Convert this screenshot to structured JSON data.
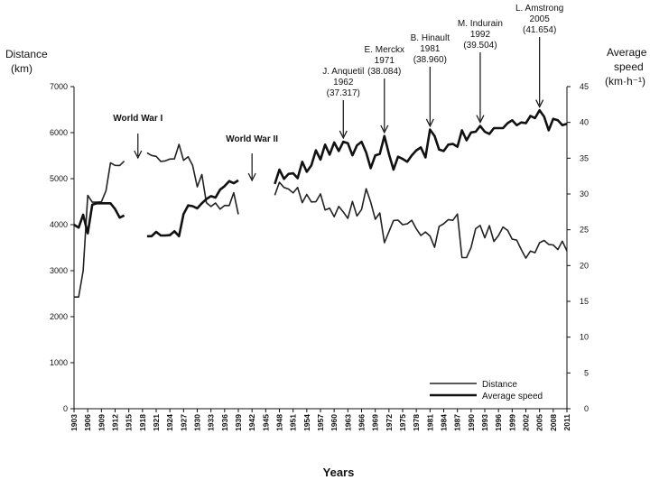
{
  "chart_data": {
    "type": "line",
    "left_axis": {
      "title_line1": "Distance",
      "title_line2": "(km)",
      "ylim": [
        0,
        7000
      ],
      "ticks": [
        "0",
        "1000",
        "2000",
        "3000",
        "4000",
        "5000",
        "6000",
        "7000"
      ]
    },
    "right_axis": {
      "title_line1": "Average",
      "title_line2": "speed",
      "title_line3": "(km·h⁻¹)",
      "ylim": [
        0,
        45
      ],
      "ticks": [
        "0",
        "5",
        "10",
        "15",
        "20",
        "25",
        "30",
        "35",
        "40",
        "45"
      ]
    },
    "x_axis": {
      "title": "Years",
      "xlim": [
        1903,
        2011
      ],
      "ticks": [
        "1903",
        "1906",
        "1909",
        "1912",
        "1915",
        "1918",
        "1921",
        "1924",
        "1927",
        "1930",
        "1933",
        "1936",
        "1939",
        "1942",
        "1945",
        "1948",
        "1951",
        "1954",
        "1957",
        "1960",
        "1963",
        "1966",
        "1969",
        "1972",
        "1975",
        "1978",
        "1981",
        "1984",
        "1987",
        "1990",
        "1993",
        "1996",
        "1999",
        "2002",
        "2005",
        "2008",
        "2011"
      ]
    },
    "wars": [
      {
        "label": "World War I",
        "year": 1917
      },
      {
        "label": "World War II",
        "year": 1942
      }
    ],
    "annotations": [
      {
        "line1": "J. Anquetil",
        "line2": "1962",
        "line3": "(37.317)",
        "year": 1962,
        "speed": 37.317
      },
      {
        "line1": "E. Merckx",
        "line2": "1971",
        "line3": "(38.084)",
        "year": 1971,
        "speed": 38.084
      },
      {
        "line1": "B. Hinault",
        "line2": "1981",
        "line3": "(38.960)",
        "year": 1981,
        "speed": 38.96
      },
      {
        "line1": "M. Indurain",
        "line2": "1992",
        "line3": "(39.504)",
        "year": 1992,
        "speed": 39.504
      },
      {
        "line1": "L. Amstrong",
        "line2": "2005",
        "line3": "(41.654)",
        "year": 2005,
        "speed": 41.654
      }
    ],
    "legend": {
      "distance": "Distance",
      "speed": "Average speed"
    },
    "series": [
      {
        "name": "Distance",
        "axis": "left",
        "segments": [
          [
            [
              1903,
              2428
            ],
            [
              1904,
              2428
            ],
            [
              1905,
              2994
            ],
            [
              1906,
              4637
            ],
            [
              1907,
              4488
            ],
            [
              1908,
              4488
            ],
            [
              1909,
              4497
            ],
            [
              1910,
              4737
            ],
            [
              1911,
              5343
            ],
            [
              1912,
              5289
            ],
            [
              1913,
              5287
            ],
            [
              1914,
              5380
            ]
          ],
          [
            [
              1919,
              5560
            ],
            [
              1920,
              5503
            ],
            [
              1921,
              5484
            ],
            [
              1922,
              5375
            ],
            [
              1923,
              5386
            ],
            [
              1924,
              5425
            ],
            [
              1925,
              5430
            ],
            [
              1926,
              5745
            ],
            [
              1927,
              5398
            ],
            [
              1928,
              5476
            ],
            [
              1929,
              5286
            ],
            [
              1930,
              4822
            ],
            [
              1931,
              5091
            ],
            [
              1932,
              4479
            ],
            [
              1933,
              4395
            ],
            [
              1934,
              4470
            ],
            [
              1935,
              4338
            ],
            [
              1936,
              4418
            ],
            [
              1937,
              4415
            ],
            [
              1938,
              4694
            ],
            [
              1939,
              4224
            ]
          ],
          [
            [
              1947,
              4640
            ],
            [
              1948,
              4922
            ],
            [
              1949,
              4808
            ],
            [
              1950,
              4775
            ],
            [
              1951,
              4690
            ],
            [
              1952,
              4807
            ],
            [
              1953,
              4476
            ],
            [
              1954,
              4656
            ],
            [
              1955,
              4495
            ],
            [
              1956,
              4498
            ],
            [
              1957,
              4669
            ],
            [
              1958,
              4319
            ],
            [
              1959,
              4358
            ],
            [
              1960,
              4173
            ],
            [
              1961,
              4397
            ],
            [
              1962,
              4274
            ],
            [
              1963,
              4138
            ],
            [
              1964,
              4504
            ],
            [
              1965,
              4188
            ],
            [
              1966,
              4329
            ],
            [
              1967,
              4780
            ],
            [
              1968,
              4492
            ],
            [
              1969,
              4117
            ],
            [
              1970,
              4254
            ],
            [
              1971,
              3608
            ],
            [
              1972,
              3846
            ],
            [
              1973,
              4090
            ],
            [
              1974,
              4098
            ],
            [
              1975,
              4000
            ],
            [
              1976,
              4017
            ],
            [
              1977,
              4096
            ],
            [
              1978,
              3908
            ],
            [
              1979,
              3765
            ],
            [
              1980,
              3842
            ],
            [
              1981,
              3753
            ],
            [
              1982,
              3507
            ],
            [
              1983,
              3962
            ],
            [
              1984,
              4020
            ],
            [
              1985,
              4109
            ],
            [
              1986,
              4094
            ],
            [
              1987,
              4231
            ],
            [
              1988,
              3286
            ],
            [
              1989,
              3285
            ],
            [
              1990,
              3504
            ],
            [
              1991,
              3914
            ],
            [
              1992,
              3983
            ],
            [
              1993,
              3714
            ],
            [
              1994,
              3978
            ],
            [
              1995,
              3635
            ],
            [
              1996,
              3765
            ],
            [
              1997,
              3950
            ],
            [
              1998,
              3875
            ],
            [
              1999,
              3687
            ],
            [
              2000,
              3662
            ],
            [
              2001,
              3458
            ],
            [
              2002,
              3272
            ],
            [
              2003,
              3427
            ],
            [
              2004,
              3391
            ],
            [
              2005,
              3608
            ],
            [
              2006,
              3657
            ],
            [
              2007,
              3570
            ],
            [
              2008,
              3559
            ],
            [
              2009,
              3459
            ],
            [
              2010,
              3642
            ],
            [
              2011,
              3430
            ]
          ]
        ]
      },
      {
        "name": "Average speed",
        "axis": "right",
        "segments": [
          [
            [
              1903,
              25.7
            ],
            [
              1904,
              25.3
            ],
            [
              1905,
              27.1
            ],
            [
              1906,
              24.5
            ],
            [
              1907,
              28.5
            ],
            [
              1908,
              28.7
            ],
            [
              1909,
              28.7
            ],
            [
              1910,
              28.7
            ],
            [
              1911,
              28.7
            ],
            [
              1912,
              27.9
            ],
            [
              1913,
              26.7
            ],
            [
              1914,
              27.0
            ]
          ],
          [
            [
              1919,
              24.1
            ],
            [
              1920,
              24.1
            ],
            [
              1921,
              24.7
            ],
            [
              1922,
              24.2
            ],
            [
              1923,
              24.2
            ],
            [
              1924,
              24.25
            ],
            [
              1925,
              24.8
            ],
            [
              1926,
              24.1
            ],
            [
              1927,
              27.2
            ],
            [
              1928,
              28.4
            ],
            [
              1929,
              28.3
            ],
            [
              1930,
              28.0
            ],
            [
              1931,
              28.7
            ],
            [
              1932,
              29.3
            ],
            [
              1933,
              29.7
            ],
            [
              1934,
              29.5
            ],
            [
              1935,
              30.6
            ],
            [
              1936,
              31.1
            ],
            [
              1937,
              31.8
            ],
            [
              1938,
              31.5
            ],
            [
              1939,
              31.9
            ]
          ],
          [
            [
              1947,
              31.4
            ],
            [
              1948,
              33.4
            ],
            [
              1949,
              32.1
            ],
            [
              1950,
              32.8
            ],
            [
              1951,
              32.9
            ],
            [
              1952,
              32.2
            ],
            [
              1953,
              34.5
            ],
            [
              1954,
              33.1
            ],
            [
              1955,
              34.0
            ],
            [
              1956,
              36.1
            ],
            [
              1957,
              34.8
            ],
            [
              1958,
              36.9
            ],
            [
              1959,
              35.5
            ],
            [
              1960,
              37.2
            ],
            [
              1961,
              36.0
            ],
            [
              1962,
              37.3
            ],
            [
              1963,
              37.1
            ],
            [
              1964,
              35.4
            ],
            [
              1965,
              36.8
            ],
            [
              1966,
              37.3
            ],
            [
              1967,
              35.8
            ],
            [
              1968,
              33.6
            ],
            [
              1969,
              35.4
            ],
            [
              1970,
              35.6
            ],
            [
              1971,
              38.1
            ],
            [
              1972,
              35.6
            ],
            [
              1973,
              33.4
            ],
            [
              1974,
              35.2
            ],
            [
              1975,
              34.9
            ],
            [
              1976,
              34.5
            ],
            [
              1977,
              35.4
            ],
            [
              1978,
              36.1
            ],
            [
              1979,
              36.5
            ],
            [
              1980,
              35.1
            ],
            [
              1981,
              39.0
            ],
            [
              1982,
              38.1
            ],
            [
              1983,
              36.2
            ],
            [
              1984,
              36.0
            ],
            [
              1985,
              36.9
            ],
            [
              1986,
              37.0
            ],
            [
              1987,
              36.6
            ],
            [
              1988,
              38.9
            ],
            [
              1989,
              37.5
            ],
            [
              1990,
              38.6
            ],
            [
              1991,
              38.7
            ],
            [
              1992,
              39.5
            ],
            [
              1993,
              38.7
            ],
            [
              1994,
              38.4
            ],
            [
              1995,
              39.2
            ],
            [
              1996,
              39.2
            ],
            [
              1997,
              39.2
            ],
            [
              1998,
              39.9
            ],
            [
              1999,
              40.3
            ],
            [
              2000,
              39.6
            ],
            [
              2001,
              40.0
            ],
            [
              2002,
              39.9
            ],
            [
              2003,
              40.9
            ],
            [
              2004,
              40.6
            ],
            [
              2005,
              41.7
            ],
            [
              2006,
              40.8
            ],
            [
              2007,
              38.9
            ],
            [
              2008,
              40.5
            ],
            [
              2009,
              40.3
            ],
            [
              2010,
              39.6
            ],
            [
              2011,
              39.8
            ]
          ]
        ]
      }
    ]
  }
}
